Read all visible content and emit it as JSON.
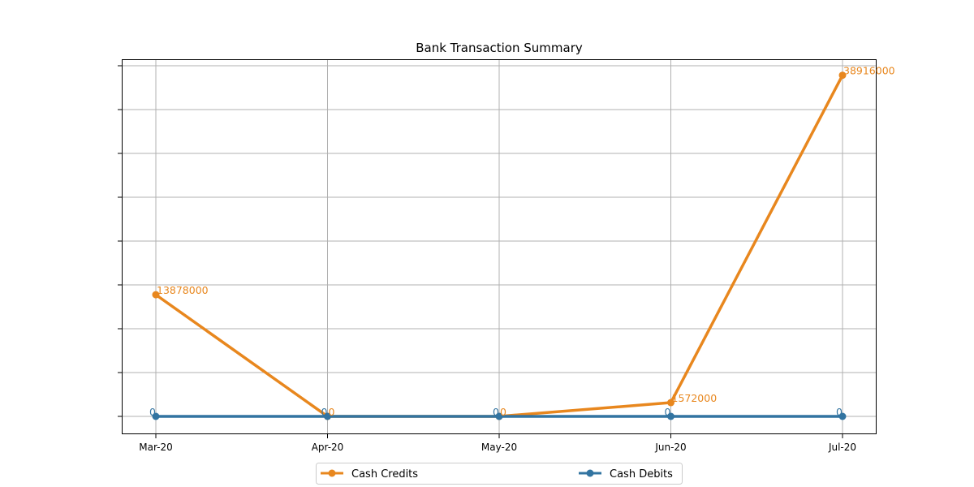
{
  "chart_data": {
    "type": "line",
    "title": "Bank Transaction Summary",
    "xlabel": "",
    "ylabel": "",
    "categories": [
      "Mar-20",
      "Apr-20",
      "May-20",
      "Jun-20",
      "Jul-20"
    ],
    "series": [
      {
        "name": "Cash Credits",
        "color": "#e8871e",
        "values": [
          13878000,
          0,
          0,
          1572000,
          38916000
        ]
      },
      {
        "name": "Cash Debits",
        "color": "#3274a1",
        "values": [
          0,
          0,
          0,
          0,
          0
        ]
      }
    ],
    "data_labels": {
      "Cash Credits": [
        "13878000",
        "0",
        "0",
        "1572000",
        "38916000"
      ],
      "Cash Debits": [
        "0",
        "0",
        "0",
        "0",
        "0"
      ]
    },
    "y_tick_count": 9,
    "y_tick_labels_visible": false,
    "grid": true,
    "legend": "bottom-center",
    "markers": "circle"
  }
}
